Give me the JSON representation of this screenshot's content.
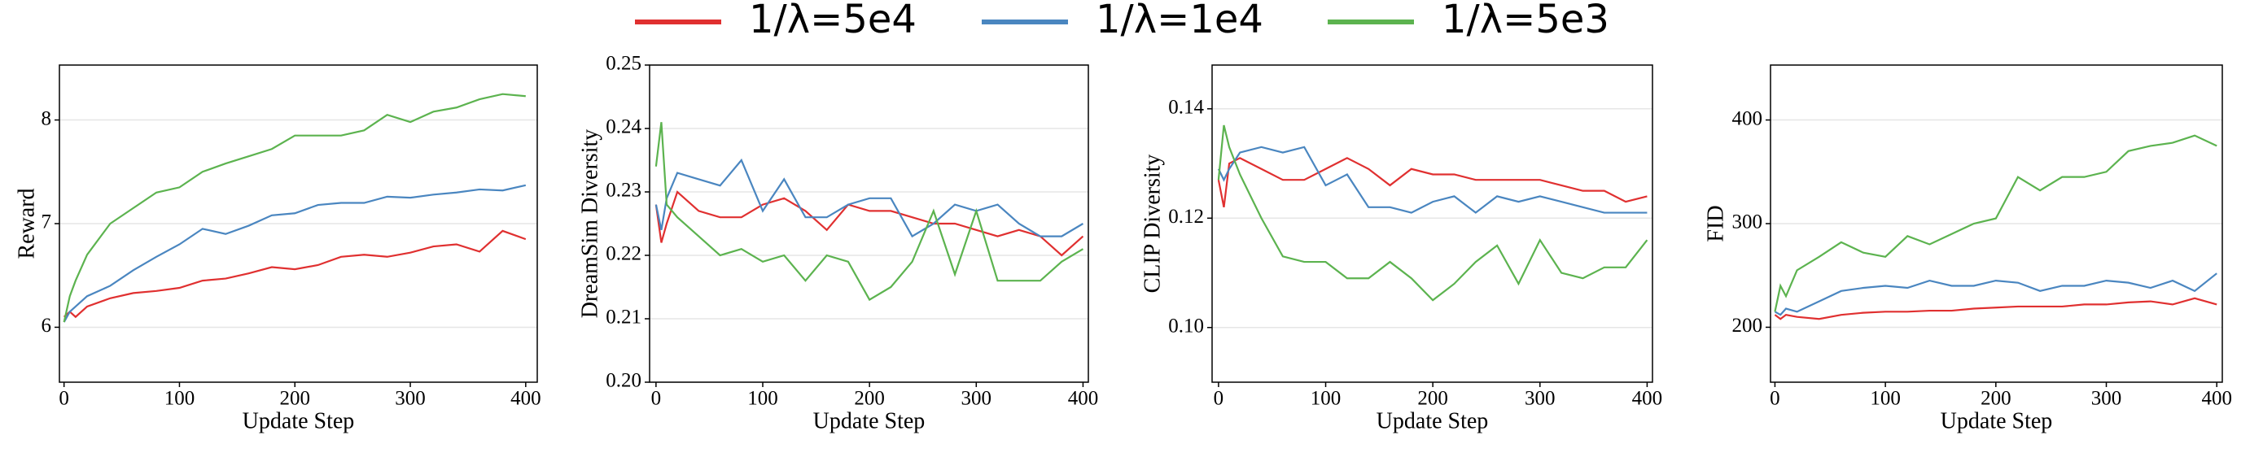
{
  "legend": [
    {
      "name": "1/λ=5e4",
      "color": "#e03030"
    },
    {
      "name": "1/λ=1e4",
      "color": "#4a86c0"
    },
    {
      "name": "1/λ=5e3",
      "color": "#5cb34f"
    }
  ],
  "chart_data": [
    {
      "type": "line",
      "xlabel": "Update Step",
      "ylabel": "Reward",
      "x": [
        0,
        5,
        10,
        20,
        40,
        60,
        80,
        100,
        120,
        140,
        160,
        180,
        200,
        220,
        240,
        260,
        280,
        300,
        320,
        340,
        360,
        380,
        400
      ],
      "series": [
        {
          "color": "#e03030",
          "values": [
            6.1,
            6.15,
            6.1,
            6.2,
            6.28,
            6.33,
            6.35,
            6.38,
            6.45,
            6.47,
            6.52,
            6.58,
            6.56,
            6.6,
            6.68,
            6.7,
            6.68,
            6.72,
            6.78,
            6.8,
            6.73,
            6.93,
            6.85
          ]
        },
        {
          "color": "#4a86c0",
          "values": [
            6.05,
            6.15,
            6.2,
            6.3,
            6.4,
            6.55,
            6.68,
            6.8,
            6.95,
            6.9,
            6.98,
            7.08,
            7.1,
            7.18,
            7.2,
            7.2,
            7.26,
            7.25,
            7.28,
            7.3,
            7.33,
            7.32,
            7.37
          ]
        },
        {
          "color": "#5cb34f",
          "values": [
            6.05,
            6.3,
            6.45,
            6.7,
            7.0,
            7.15,
            7.3,
            7.35,
            7.5,
            7.58,
            7.65,
            7.72,
            7.85,
            7.85,
            7.85,
            7.9,
            8.05,
            7.98,
            8.08,
            8.12,
            8.2,
            8.25,
            8.23
          ]
        }
      ],
      "xlim": [
        -4,
        410
      ],
      "ylim": [
        5.47,
        8.53
      ],
      "xticks": [
        0,
        100,
        200,
        300,
        400
      ],
      "yticks": [
        6,
        7,
        8
      ],
      "grid": true
    },
    {
      "type": "line",
      "xlabel": "Update Step",
      "ylabel": "DreamSim Diversity",
      "x": [
        0,
        5,
        10,
        20,
        40,
        60,
        80,
        100,
        120,
        140,
        160,
        180,
        200,
        220,
        240,
        260,
        280,
        300,
        320,
        340,
        360,
        380,
        400
      ],
      "series": [
        {
          "color": "#e03030",
          "values": [
            0.228,
            0.222,
            0.225,
            0.23,
            0.227,
            0.226,
            0.226,
            0.228,
            0.229,
            0.227,
            0.224,
            0.228,
            0.227,
            0.227,
            0.226,
            0.225,
            0.225,
            0.224,
            0.223,
            0.224,
            0.223,
            0.22,
            0.223
          ]
        },
        {
          "color": "#4a86c0",
          "values": [
            0.228,
            0.224,
            0.229,
            0.233,
            0.232,
            0.231,
            0.235,
            0.227,
            0.232,
            0.226,
            0.226,
            0.228,
            0.229,
            0.229,
            0.223,
            0.225,
            0.228,
            0.227,
            0.228,
            0.225,
            0.223,
            0.223,
            0.225
          ]
        },
        {
          "color": "#5cb34f",
          "values": [
            0.234,
            0.241,
            0.228,
            0.226,
            0.223,
            0.22,
            0.221,
            0.219,
            0.22,
            0.216,
            0.22,
            0.219,
            0.213,
            0.215,
            0.219,
            0.227,
            0.217,
            0.227,
            0.216,
            0.216,
            0.216,
            0.219,
            0.221
          ]
        }
      ],
      "xlim": [
        -6,
        405
      ],
      "ylim": [
        0.2,
        0.25
      ],
      "xticks": [
        0,
        100,
        200,
        300,
        400
      ],
      "yticks": [
        {
          "value": 0.2,
          "label": "0.20"
        },
        0.21,
        0.22,
        0.23,
        0.24,
        0.25
      ],
      "grid": true
    },
    {
      "type": "line",
      "xlabel": "Update Step",
      "ylabel": "CLIP Diversity",
      "x": [
        0,
        5,
        10,
        20,
        40,
        60,
        80,
        100,
        120,
        140,
        160,
        180,
        200,
        220,
        240,
        260,
        280,
        300,
        320,
        340,
        360,
        380,
        400
      ],
      "series": [
        {
          "color": "#e03030",
          "values": [
            0.127,
            0.122,
            0.13,
            0.131,
            0.129,
            0.127,
            0.127,
            0.129,
            0.131,
            0.129,
            0.126,
            0.129,
            0.128,
            0.128,
            0.127,
            0.127,
            0.127,
            0.127,
            0.126,
            0.125,
            0.125,
            0.123,
            0.124
          ]
        },
        {
          "color": "#4a86c0",
          "values": [
            0.129,
            0.127,
            0.129,
            0.132,
            0.133,
            0.132,
            0.133,
            0.126,
            0.128,
            0.122,
            0.122,
            0.121,
            0.123,
            0.124,
            0.121,
            0.124,
            0.123,
            0.124,
            0.123,
            0.122,
            0.121,
            0.121,
            0.121
          ]
        },
        {
          "color": "#5cb34f",
          "values": [
            0.127,
            0.137,
            0.133,
            0.128,
            0.12,
            0.113,
            0.112,
            0.112,
            0.109,
            0.109,
            0.112,
            0.109,
            0.105,
            0.108,
            0.112,
            0.115,
            0.108,
            0.116,
            0.11,
            0.109,
            0.111,
            0.111,
            0.116
          ]
        }
      ],
      "xlim": [
        -6,
        405
      ],
      "ylim": [
        0.09,
        0.148
      ],
      "xticks": [
        0,
        100,
        200,
        300,
        400
      ],
      "yticks": [
        {
          "value": 0.1,
          "label": "0.10"
        },
        0.12,
        0.14
      ],
      "grid": true
    },
    {
      "type": "line",
      "xlabel": "Update Step",
      "ylabel": "FID",
      "x": [
        0,
        5,
        10,
        20,
        40,
        60,
        80,
        100,
        120,
        140,
        160,
        180,
        200,
        220,
        240,
        260,
        280,
        300,
        320,
        340,
        360,
        380,
        400
      ],
      "series": [
        {
          "color": "#e03030",
          "values": [
            212,
            208,
            212,
            210,
            208,
            212,
            214,
            215,
            215,
            216,
            216,
            218,
            219,
            220,
            220,
            220,
            222,
            222,
            224,
            225,
            222,
            228,
            222
          ]
        },
        {
          "color": "#4a86c0",
          "values": [
            215,
            212,
            218,
            215,
            225,
            235,
            238,
            240,
            238,
            245,
            240,
            240,
            245,
            243,
            235,
            240,
            240,
            245,
            243,
            238,
            245,
            235,
            252
          ]
        },
        {
          "color": "#5cb34f",
          "values": [
            215,
            240,
            230,
            255,
            268,
            282,
            272,
            268,
            288,
            280,
            290,
            300,
            305,
            345,
            332,
            345,
            345,
            350,
            370,
            375,
            378,
            385,
            375
          ]
        }
      ],
      "xlim": [
        -4,
        405
      ],
      "ylim": [
        147,
        453
      ],
      "xticks": [
        0,
        100,
        200,
        300,
        400
      ],
      "yticks": [
        200,
        300,
        400
      ],
      "grid": true
    }
  ]
}
